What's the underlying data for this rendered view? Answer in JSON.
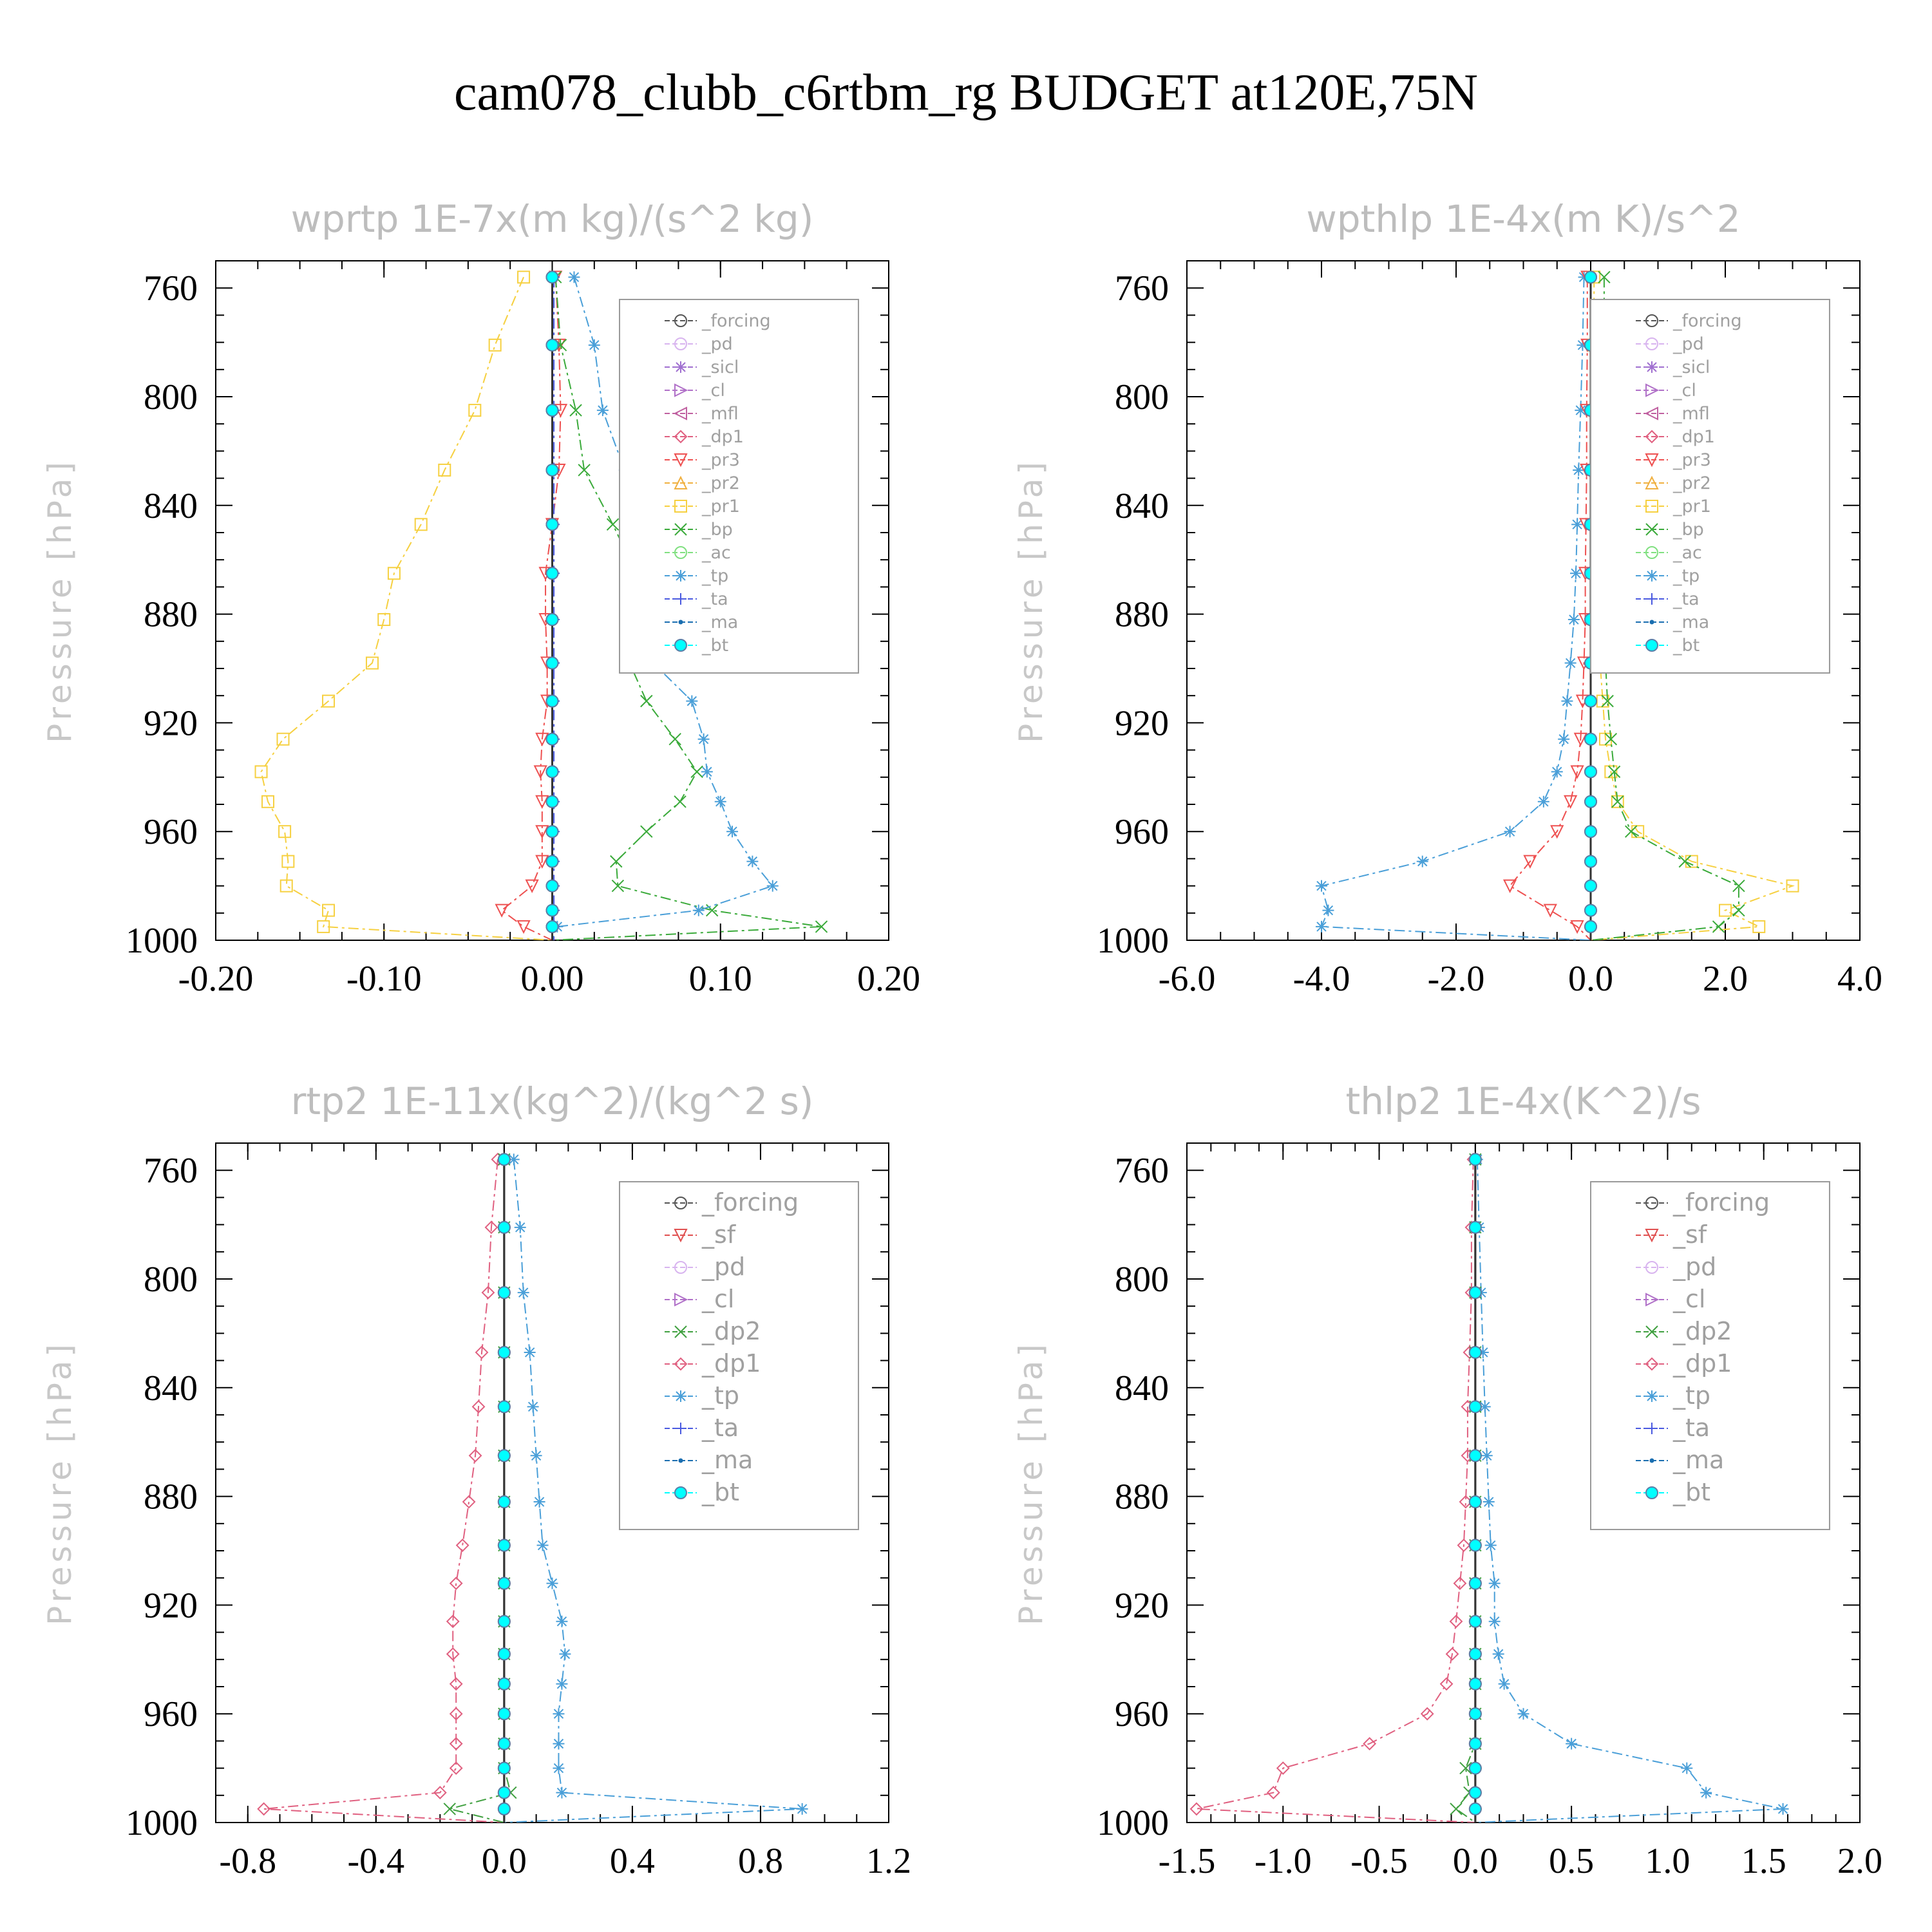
{
  "title": "cam078_clubb_c6rtbm_rg  BUDGET at120E,75N",
  "colors": {
    "_forcing": "#555555",
    "_pd": "#d8b4ef",
    "_sicl": "#a070d0",
    "_cl": "#b070c8",
    "_mfl": "#c060a0",
    "_dp1": "#e06080",
    "_pr3": "#ee5050",
    "_pr2": "#f0b040",
    "_pr1": "#f6d040",
    "_bp": "#3aaa3a",
    "_ac": "#80e080",
    "_tp": "#4a9fd8",
    "_ta": "#4a5ae0",
    "_ma": "#1a6eb0",
    "_bt": "#00ffff",
    "_sf": "#e05050",
    "_dp2": "#40a040"
  },
  "chart_data": [
    {
      "type": "line",
      "title": "wprtp  1E-7x(m kg)/(s^2 kg)",
      "ylabel": "Pressure [hPa]",
      "xlim": [
        -0.2,
        0.2
      ],
      "ylim": [
        1000,
        750
      ],
      "xticks": [
        "-0.20",
        "-0.10",
        "0.00",
        "0.10",
        "0.20"
      ],
      "yticks": [
        "760",
        "800",
        "840",
        "880",
        "920",
        "960",
        "1000"
      ],
      "legend": [
        "_forcing",
        "_pd",
        "_sicl",
        "_cl",
        "_mfl",
        "_dp1",
        "_pr3",
        "_pr2",
        "_pr1",
        "_bp",
        "_ac",
        "_tp",
        "_ta",
        "_ma",
        "_bt"
      ],
      "y": [
        756,
        781,
        805,
        827,
        847,
        865,
        882,
        898,
        912,
        926,
        938,
        949,
        960,
        971,
        980,
        989,
        995,
        1000
      ],
      "series": [
        {
          "name": "_pr1",
          "values": [
            -0.017,
            -0.034,
            -0.046,
            -0.064,
            -0.078,
            -0.094,
            -0.1,
            -0.107,
            -0.133,
            -0.16,
            -0.173,
            -0.169,
            -0.159,
            -0.157,
            -0.158,
            -0.133,
            -0.136,
            0
          ]
        },
        {
          "name": "_pr3",
          "values": [
            0.002,
            0.004,
            0.005,
            0.004,
            0.0,
            -0.004,
            -0.004,
            -0.003,
            -0.003,
            -0.006,
            -0.007,
            -0.006,
            -0.006,
            -0.006,
            -0.012,
            -0.03,
            -0.017,
            0
          ]
        },
        {
          "name": "_bp",
          "values": [
            0.002,
            0.005,
            0.014,
            0.019,
            0.036,
            0.05,
            0.052,
            0.046,
            0.056,
            0.073,
            0.086,
            0.076,
            0.056,
            0.038,
            0.039,
            0.095,
            0.16,
            0
          ]
        },
        {
          "name": "_tp",
          "values": [
            0.013,
            0.025,
            0.03,
            0.043,
            0.044,
            0.05,
            0.052,
            0.06,
            0.083,
            0.09,
            0.092,
            0.1,
            0.107,
            0.119,
            0.131,
            0.087,
            0.003,
            0
          ]
        },
        {
          "name": "_forcing",
          "values": [
            0,
            0,
            0,
            0,
            0,
            0,
            0,
            0,
            0,
            0,
            0,
            0,
            0,
            0,
            0,
            0,
            0,
            0
          ]
        },
        {
          "name": "_ta",
          "values": [
            0.001,
            0.001,
            0.001,
            0.001,
            0.001,
            0.001,
            0.001,
            0.001,
            0.001,
            0.001,
            0.001,
            0.001,
            0.001,
            0.001,
            0.001,
            0.001,
            0.001,
            0.001
          ]
        },
        {
          "name": "_bt",
          "values": [
            0,
            0,
            0,
            0,
            0,
            0,
            0,
            0,
            0,
            0,
            0,
            0,
            0,
            0,
            0,
            0,
            0,
            0
          ]
        }
      ]
    },
    {
      "type": "line",
      "title": "wpthlp  1E-4x(m K)/s^2",
      "ylabel": "Pressure [hPa]",
      "xlim": [
        -6.0,
        4.0
      ],
      "ylim": [
        1000,
        750
      ],
      "xticks": [
        "-6.0",
        "-4.0",
        "-2.0",
        "0.0",
        "2.0",
        "4.0"
      ],
      "yticks": [
        "760",
        "800",
        "840",
        "880",
        "920",
        "960",
        "1000"
      ],
      "legend": [
        "_forcing",
        "_pd",
        "_sicl",
        "_cl",
        "_mfl",
        "_dp1",
        "_pr3",
        "_pr2",
        "_pr1",
        "_bp",
        "_ac",
        "_tp",
        "_ta",
        "_ma",
        "_bt"
      ],
      "y": [
        756,
        781,
        805,
        827,
        847,
        865,
        882,
        898,
        912,
        926,
        938,
        949,
        960,
        971,
        980,
        989,
        995,
        1000
      ],
      "series": [
        {
          "name": "_tp",
          "values": [
            -0.1,
            -0.12,
            -0.15,
            -0.18,
            -0.2,
            -0.22,
            -0.25,
            -0.3,
            -0.35,
            -0.4,
            -0.5,
            -0.7,
            -1.2,
            -2.5,
            -4.0,
            -3.9,
            -4.0,
            0
          ]
        },
        {
          "name": "_pr3",
          "values": [
            -0.05,
            -0.05,
            -0.06,
            -0.06,
            -0.07,
            -0.08,
            -0.08,
            -0.1,
            -0.12,
            -0.15,
            -0.2,
            -0.3,
            -0.5,
            -0.9,
            -1.2,
            -0.6,
            -0.2,
            0
          ]
        },
        {
          "name": "_pr1",
          "values": [
            0.05,
            0.05,
            0.06,
            0.07,
            0.08,
            0.1,
            0.12,
            0.14,
            0.18,
            0.22,
            0.3,
            0.4,
            0.7,
            1.5,
            3.0,
            2.0,
            2.5,
            0
          ]
        },
        {
          "name": "_bp",
          "values": [
            0.2,
            0.2,
            0.2,
            0.2,
            0.2,
            0.2,
            0.2,
            0.22,
            0.25,
            0.3,
            0.35,
            0.4,
            0.6,
            1.4,
            2.2,
            2.2,
            1.9,
            0
          ]
        },
        {
          "name": "_forcing",
          "values": [
            0,
            0,
            0,
            0,
            0,
            0,
            0,
            0,
            0,
            0,
            0,
            0,
            0,
            0,
            0,
            0,
            0,
            0
          ]
        },
        {
          "name": "_bt",
          "values": [
            0,
            0,
            0,
            0,
            0,
            0,
            0,
            0,
            0,
            0,
            0,
            0,
            0,
            0,
            0,
            0,
            0,
            0
          ]
        }
      ]
    },
    {
      "type": "line",
      "title": "rtp2  1E-11x(kg^2)/(kg^2 s)",
      "ylabel": "Pressure [hPa]",
      "xlim": [
        -0.9,
        1.2
      ],
      "ylim": [
        1000,
        750
      ],
      "xticks": [
        "-0.8",
        "-0.4",
        "0.0",
        "0.4",
        "0.8",
        "1.2"
      ],
      "yticks": [
        "760",
        "800",
        "840",
        "880",
        "920",
        "960",
        "1000"
      ],
      "legend": [
        "_forcing",
        "_sf",
        "_pd",
        "_cl",
        "_dp2",
        "_dp1",
        "_tp",
        "_ta",
        "_ma",
        "_bt"
      ],
      "y": [
        756,
        781,
        805,
        827,
        847,
        865,
        882,
        898,
        912,
        926,
        938,
        949,
        960,
        971,
        980,
        989,
        995,
        1000
      ],
      "series": [
        {
          "name": "_dp1",
          "values": [
            -0.02,
            -0.04,
            -0.05,
            -0.07,
            -0.08,
            -0.09,
            -0.11,
            -0.13,
            -0.15,
            -0.16,
            -0.16,
            -0.15,
            -0.15,
            -0.15,
            -0.15,
            -0.2,
            -0.75,
            0
          ]
        },
        {
          "name": "_tp",
          "values": [
            0.03,
            0.05,
            0.06,
            0.08,
            0.09,
            0.1,
            0.11,
            0.12,
            0.15,
            0.18,
            0.19,
            0.18,
            0.17,
            0.17,
            0.17,
            0.18,
            0.93,
            0
          ]
        },
        {
          "name": "_dp2",
          "values": [
            0.0,
            0.0,
            0.0,
            0.0,
            0.0,
            0.0,
            0.0,
            0.0,
            0.0,
            0.0,
            0.0,
            0.0,
            0.0,
            0.0,
            0.0,
            0.02,
            -0.17,
            0
          ]
        },
        {
          "name": "_forcing",
          "values": [
            0,
            0,
            0,
            0,
            0,
            0,
            0,
            0,
            0,
            0,
            0,
            0,
            0,
            0,
            0,
            0,
            0,
            0
          ]
        },
        {
          "name": "_bt",
          "values": [
            0,
            0,
            0,
            0,
            0,
            0,
            0,
            0,
            0,
            0,
            0,
            0,
            0,
            0,
            0,
            0,
            0,
            0
          ]
        }
      ]
    },
    {
      "type": "line",
      "title": "thlp2  1E-4x(K^2)/s",
      "ylabel": "Pressure [hPa]",
      "xlim": [
        -1.5,
        2.0
      ],
      "ylim": [
        1000,
        750
      ],
      "xticks": [
        "-1.5",
        "-1.0",
        "-0.5",
        "0.0",
        "0.5",
        "1.0",
        "1.5",
        "2.0"
      ],
      "yticks": [
        "760",
        "800",
        "840",
        "880",
        "920",
        "960",
        "1000"
      ],
      "legend": [
        "_forcing",
        "_sf",
        "_pd",
        "_cl",
        "_dp2",
        "_dp1",
        "_tp",
        "_ta",
        "_ma",
        "_bt"
      ],
      "y": [
        756,
        781,
        805,
        827,
        847,
        865,
        882,
        898,
        912,
        926,
        938,
        949,
        960,
        971,
        980,
        989,
        995,
        1000
      ],
      "series": [
        {
          "name": "_dp1",
          "values": [
            -0.01,
            -0.02,
            -0.02,
            -0.03,
            -0.04,
            -0.04,
            -0.05,
            -0.06,
            -0.08,
            -0.1,
            -0.12,
            -0.15,
            -0.25,
            -0.55,
            -1.0,
            -1.05,
            -1.45,
            0
          ]
        },
        {
          "name": "_tp",
          "values": [
            0.01,
            0.02,
            0.03,
            0.04,
            0.05,
            0.06,
            0.07,
            0.08,
            0.1,
            0.1,
            0.12,
            0.15,
            0.25,
            0.5,
            1.1,
            1.2,
            1.6,
            0
          ]
        },
        {
          "name": "_dp2",
          "values": [
            0.0,
            0.0,
            0.0,
            0.0,
            0.0,
            0.0,
            0.0,
            0.0,
            0.0,
            0.0,
            0.0,
            0.0,
            0.0,
            0.0,
            -0.05,
            -0.03,
            -0.1,
            0
          ]
        },
        {
          "name": "_forcing",
          "values": [
            0,
            0,
            0,
            0,
            0,
            0,
            0,
            0,
            0,
            0,
            0,
            0,
            0,
            0,
            0,
            0,
            0,
            0
          ]
        },
        {
          "name": "_bt",
          "values": [
            0,
            0,
            0,
            0,
            0,
            0,
            0,
            0,
            0,
            0,
            0,
            0,
            0,
            0,
            0,
            0,
            0,
            0
          ]
        }
      ]
    }
  ]
}
